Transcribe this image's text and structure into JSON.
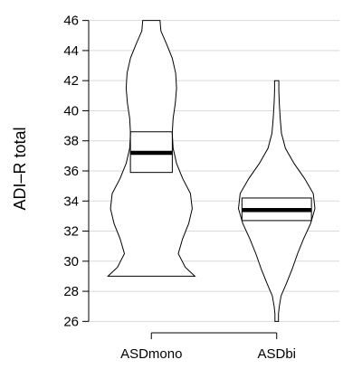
{
  "chart_data": {
    "type": "violin",
    "ylabel": "ADI–R total",
    "ylim": [
      25.3,
      47
    ],
    "yticks": [
      26,
      28,
      30,
      32,
      34,
      36,
      38,
      40,
      42,
      44,
      46
    ],
    "grid": true,
    "categories": [
      "ASDmono",
      "ASDbi"
    ],
    "series": [
      {
        "category": "ASDmono",
        "median": 37.2,
        "ci_low": 35.9,
        "ci_high": 38.6,
        "min": 29,
        "max": 46,
        "density": [
          [
            29,
            1.0
          ],
          [
            29.6,
            0.78
          ],
          [
            30.5,
            0.62
          ],
          [
            31.5,
            0.72
          ],
          [
            32.5,
            0.86
          ],
          [
            33.5,
            0.94
          ],
          [
            34.5,
            0.9
          ],
          [
            35.5,
            0.72
          ],
          [
            36.5,
            0.58
          ],
          [
            37.5,
            0.5
          ],
          [
            38.5,
            0.48
          ],
          [
            39.5,
            0.5
          ],
          [
            40.5,
            0.55
          ],
          [
            41.5,
            0.58
          ],
          [
            42.5,
            0.56
          ],
          [
            43.5,
            0.48
          ],
          [
            44.5,
            0.34
          ],
          [
            45.3,
            0.22
          ],
          [
            46,
            0.2
          ]
        ]
      },
      {
        "category": "ASDbi",
        "median": 33.4,
        "ci_low": 32.7,
        "ci_high": 34.2,
        "min": 26,
        "max": 42,
        "density": [
          [
            26,
            0.04
          ],
          [
            26.5,
            0.04
          ],
          [
            27,
            0.06
          ],
          [
            27.7,
            0.1
          ],
          [
            28.5,
            0.22
          ],
          [
            29.5,
            0.36
          ],
          [
            30.5,
            0.48
          ],
          [
            31.5,
            0.62
          ],
          [
            32.5,
            0.78
          ],
          [
            33.5,
            0.88
          ],
          [
            34.5,
            0.84
          ],
          [
            35.5,
            0.64
          ],
          [
            36.5,
            0.4
          ],
          [
            37.5,
            0.2
          ],
          [
            38.5,
            0.11
          ],
          [
            39.5,
            0.08
          ],
          [
            40.5,
            0.06
          ],
          [
            41.3,
            0.05
          ],
          [
            42,
            0.05
          ]
        ]
      }
    ]
  }
}
